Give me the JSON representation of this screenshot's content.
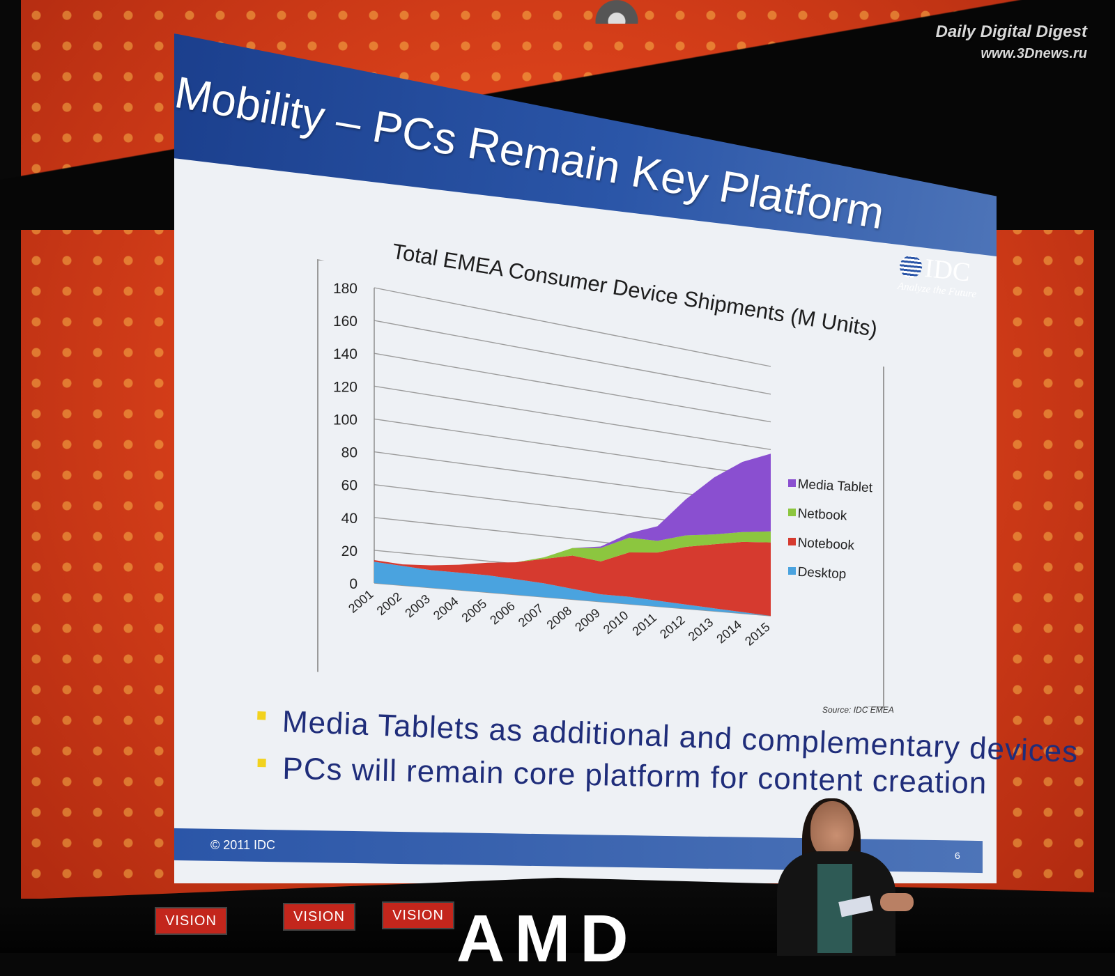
{
  "watermark": {
    "line1": "Daily Digital Digest",
    "line2": "www.3Dnews.ru"
  },
  "slide": {
    "title": "Mobility – PCs Remain Key Platform",
    "logo": {
      "name": "IDC",
      "tagline": "Analyze the Future"
    },
    "source": "Source:  IDC EMEA",
    "bullets": [
      "Media Tablets as additional and complementary devices",
      "PCs will remain core platform for content creation"
    ],
    "footer": {
      "copyright": "© 2011 IDC",
      "page": "6"
    },
    "colors": {
      "header": "#2b56a8",
      "bullet_marker": "#f2d21e",
      "bullet_text": "#1f2d7a"
    }
  },
  "stage": {
    "banners": [
      "VISION",
      "VISION",
      "VISION"
    ],
    "sign_text": "AMD"
  },
  "chart_data": {
    "type": "area",
    "stacked": true,
    "title": "Total EMEA Consumer Device Shipments (M Units)",
    "xlabel": "",
    "ylabel": "",
    "ylim": [
      0,
      180
    ],
    "y_ticks": [
      0,
      20,
      40,
      60,
      80,
      100,
      120,
      140,
      160,
      180
    ],
    "grid": true,
    "legend_position": "right",
    "categories": [
      "2001",
      "2002",
      "2003",
      "2004",
      "2005",
      "2006",
      "2007",
      "2008",
      "2009",
      "2010",
      "2011",
      "2012",
      "2013",
      "2014",
      "2015"
    ],
    "series": [
      {
        "name": "Desktop",
        "color": "#4aa3df",
        "values": [
          13,
          12,
          11,
          11,
          11,
          10,
          9,
          7,
          5,
          5,
          4,
          3,
          2,
          1,
          0
        ]
      },
      {
        "name": "Notebook",
        "color": "#d63a2f",
        "values": [
          1,
          1,
          3,
          5,
          8,
          11,
          16,
          22,
          22,
          30,
          33,
          40,
          45,
          50,
          53
        ]
      },
      {
        "name": "Netbook",
        "color": "#8cc63f",
        "values": [
          0,
          0,
          0,
          0,
          0,
          0,
          1,
          5,
          9,
          10,
          8,
          8,
          7,
          7,
          8
        ]
      },
      {
        "name": "Media Tablet",
        "color": "#8a4fd0",
        "values": [
          0,
          0,
          0,
          0,
          0,
          0,
          0,
          0,
          1,
          3,
          10,
          25,
          40,
          50,
          56
        ]
      }
    ]
  }
}
